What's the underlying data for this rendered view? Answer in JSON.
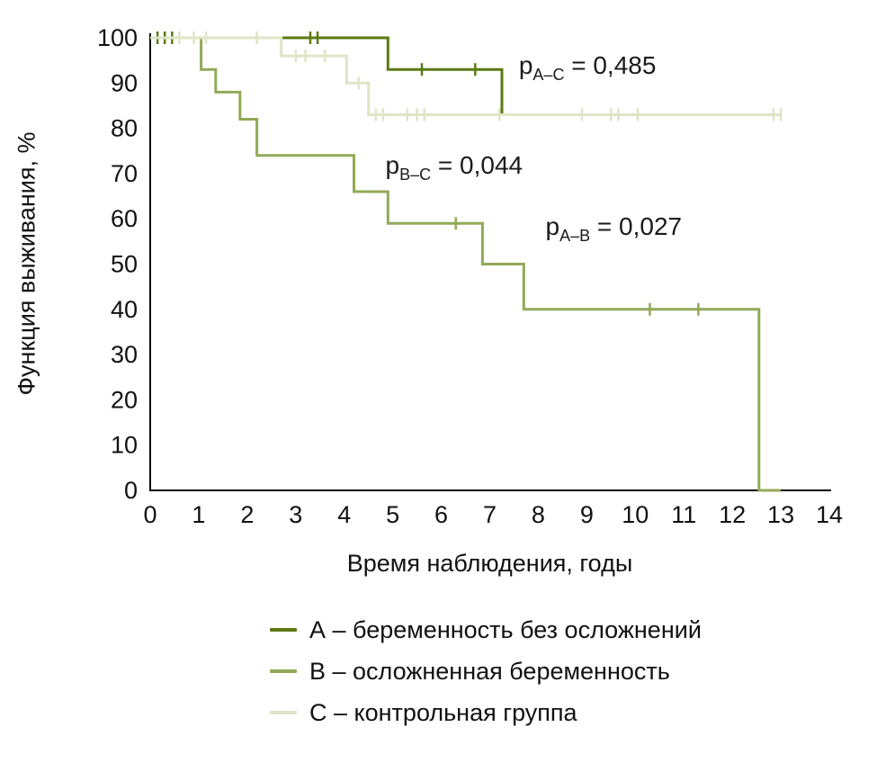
{
  "chart_data": {
    "type": "line",
    "subtype": "kaplan-meier-step",
    "title": "",
    "xlabel": "Время наблюдения, годы",
    "ylabel": "Функция выживания, %",
    "xlim": [
      0,
      14
    ],
    "ylim": [
      0,
      100
    ],
    "xticks": [
      0,
      1,
      2,
      3,
      4,
      5,
      6,
      7,
      8,
      9,
      10,
      11,
      12,
      13,
      14
    ],
    "yticks": [
      0,
      10,
      20,
      30,
      40,
      50,
      60,
      70,
      80,
      90,
      100
    ],
    "grid": false,
    "legend_position": "bottom",
    "series": [
      {
        "name": "A",
        "label": "А – беременность без осложнений",
        "color": "#5b7a13",
        "points": [
          [
            0,
            100
          ],
          [
            4.9,
            100
          ],
          [
            4.9,
            93
          ],
          [
            7.25,
            93
          ],
          [
            7.25,
            83
          ]
        ],
        "censors": [
          [
            0.15,
            100
          ],
          [
            0.3,
            100
          ],
          [
            0.45,
            100
          ],
          [
            3.3,
            100
          ],
          [
            3.45,
            100
          ],
          [
            5.6,
            93
          ],
          [
            6.7,
            93
          ]
        ]
      },
      {
        "name": "B",
        "label": "В – осложненная беременность",
        "color": "#93a958",
        "points": [
          [
            0,
            100
          ],
          [
            1.05,
            100
          ],
          [
            1.05,
            93
          ],
          [
            1.35,
            93
          ],
          [
            1.35,
            88
          ],
          [
            1.85,
            88
          ],
          [
            1.85,
            82
          ],
          [
            2.2,
            82
          ],
          [
            2.2,
            74
          ],
          [
            4.2,
            74
          ],
          [
            4.2,
            66
          ],
          [
            4.9,
            66
          ],
          [
            4.9,
            59
          ],
          [
            6.85,
            59
          ],
          [
            6.85,
            50
          ],
          [
            7.7,
            50
          ],
          [
            7.7,
            40
          ],
          [
            12.55,
            40
          ],
          [
            12.55,
            0
          ],
          [
            13,
            0
          ]
        ],
        "censors": [
          [
            6.3,
            59
          ],
          [
            10.3,
            40
          ],
          [
            11.3,
            40
          ]
        ]
      },
      {
        "name": "C",
        "label": "С – контрольная группа",
        "color": "#dde6c6",
        "points": [
          [
            0,
            100
          ],
          [
            2.7,
            100
          ],
          [
            2.7,
            96
          ],
          [
            4.05,
            96
          ],
          [
            4.05,
            90
          ],
          [
            4.5,
            90
          ],
          [
            4.5,
            83
          ],
          [
            13,
            83
          ]
        ],
        "censors": [
          [
            0.6,
            100
          ],
          [
            0.9,
            100
          ],
          [
            1.15,
            100
          ],
          [
            2.2,
            100
          ],
          [
            3.0,
            96
          ],
          [
            3.2,
            96
          ],
          [
            3.6,
            96
          ],
          [
            4.3,
            90
          ],
          [
            4.65,
            83
          ],
          [
            4.8,
            83
          ],
          [
            5.3,
            83
          ],
          [
            5.5,
            83
          ],
          [
            5.65,
            83
          ],
          [
            7.2,
            83
          ],
          [
            8.9,
            83
          ],
          [
            9.5,
            83
          ],
          [
            9.65,
            83
          ],
          [
            10.05,
            83
          ],
          [
            12.85,
            83
          ],
          [
            13.0,
            83
          ]
        ]
      }
    ],
    "annotations": [
      {
        "base": "p",
        "sub": "А–С",
        "text": " = 0,485",
        "x": 7.6,
        "y": 92
      },
      {
        "base": "p",
        "sub": "В–С",
        "text": " = 0,044",
        "x": 4.85,
        "y": 70
      },
      {
        "base": "p",
        "sub": "А–В",
        "text": " = 0,027",
        "x": 8.15,
        "y": 56.5
      }
    ]
  },
  "legend": {
    "items": [
      {
        "label": "А – беременность без осложнений",
        "color": "#5b7a13"
      },
      {
        "label": "В – осложненная беременность",
        "color": "#93a958"
      },
      {
        "label": "С – контрольная группа",
        "color": "#dde6c6"
      }
    ]
  }
}
